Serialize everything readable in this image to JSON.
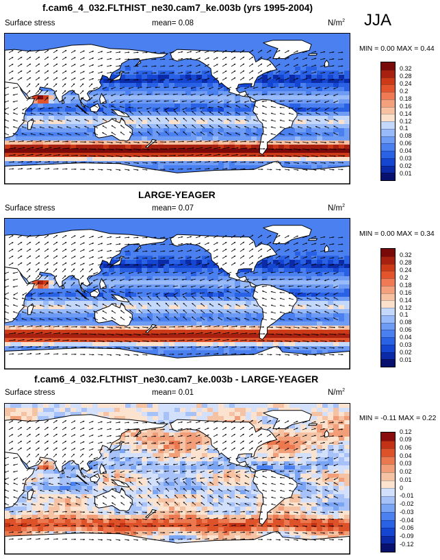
{
  "season": "JJA",
  "panels": [
    {
      "title": "f.cam6_4_032.FLTHIST_ne30.cam7_ke.003b (yrs 1995-2004)",
      "variable": "Surface stress",
      "mean_label": "mean=",
      "mean_value": "0.08",
      "units": "N/m",
      "units_sup": "2",
      "min_label": "MIN =",
      "min_value": "0.00",
      "max_label": "MAX =",
      "max_value": "0.44",
      "palette": "sequential"
    },
    {
      "title": "LARGE-YEAGER",
      "variable": "Surface stress",
      "mean_label": "mean=",
      "mean_value": "0.07",
      "units": "N/m",
      "units_sup": "2",
      "min_label": "MIN =",
      "min_value": "0.00",
      "max_label": "MAX =",
      "max_value": "0.34",
      "palette": "sequential"
    },
    {
      "title": "f.cam6_4_032.FLTHIST_ne30.cam7_ke.003b - LARGE-YEAGER",
      "variable": "Surface stress",
      "mean_label": "mean=",
      "mean_value": "0.01",
      "units": "N/m",
      "units_sup": "2",
      "min_label": "MIN =",
      "min_value": "-0.11",
      "max_label": "MAX =",
      "max_value": "0.22",
      "palette": "diverging"
    }
  ],
  "colors": {
    "sequential": [
      "#08126e",
      "#0a2aa8",
      "#1446d2",
      "#2a62e6",
      "#4a80f0",
      "#6e9cf4",
      "#98baf8",
      "#c4d8fb",
      "#fbe1cc",
      "#f8c2a2",
      "#f5a07c",
      "#ef7a54",
      "#e3542c",
      "#cc3a18",
      "#a82010",
      "#7a0a0a"
    ],
    "diverging": [
      "#08126e",
      "#0a2aa8",
      "#1446d2",
      "#2a62e6",
      "#4a80f0",
      "#7aa4f4",
      "#a6c2f8",
      "#d2e0fb",
      "#fbe3d0",
      "#f6c2a4",
      "#f29e78",
      "#ec7850",
      "#de522a",
      "#c43216",
      "#8a0c0c"
    ],
    "land": "#ffffff"
  },
  "chart_data": [
    {
      "type": "heatmap",
      "title": "f.cam6_4_032.FLTHIST_ne30.cam7_ke.003b (yrs 1995-2004)",
      "variable": "Surface stress",
      "units": "N/m2",
      "season": "JJA",
      "mean": 0.08,
      "min": 0.0,
      "max": 0.44,
      "colorbar_levels": [
        0.01,
        0.02,
        0.03,
        0.04,
        0.06,
        0.08,
        0.1,
        0.12,
        0.14,
        0.16,
        0.18,
        0.2,
        0.24,
        0.28,
        0.32
      ],
      "colorbar_labels": [
        "0.01",
        "0.02",
        "0.03",
        "0.04",
        "0.06",
        "0.08",
        "0.1",
        "0.12",
        "0.14",
        "0.16",
        "0.18",
        "0.2",
        "0.24",
        "0.28",
        "0.32"
      ]
    },
    {
      "type": "heatmap",
      "title": "LARGE-YEAGER",
      "variable": "Surface stress",
      "units": "N/m2",
      "mean": 0.07,
      "min": 0.0,
      "max": 0.34,
      "colorbar_levels": [
        0.01,
        0.02,
        0.03,
        0.04,
        0.06,
        0.08,
        0.1,
        0.12,
        0.14,
        0.16,
        0.18,
        0.2,
        0.24,
        0.28,
        0.32
      ],
      "colorbar_labels": [
        "0.01",
        "0.02",
        "0.03",
        "0.04",
        "0.06",
        "0.08",
        "0.1",
        "0.12",
        "0.14",
        "0.16",
        "0.18",
        "0.2",
        "0.24",
        "0.28",
        "0.32"
      ]
    },
    {
      "type": "heatmap",
      "title": "f.cam6_4_032.FLTHIST_ne30.cam7_ke.003b - LARGE-YEAGER",
      "variable": "Surface stress",
      "units": "N/m2",
      "mean": 0.01,
      "min": -0.11,
      "max": 0.22,
      "colorbar_levels": [
        -0.12,
        -0.09,
        -0.06,
        -0.04,
        -0.03,
        -0.02,
        -0.01,
        0,
        0.01,
        0.02,
        0.03,
        0.04,
        0.06,
        0.09,
        0.12
      ],
      "colorbar_labels": [
        "-0.12",
        "-0.09",
        "-0.06",
        "-0.04",
        "-0.03",
        "-0.02",
        "-0.01",
        "0",
        "0.01",
        "0.02",
        "0.03",
        "0.04",
        "0.06",
        "0.09",
        "0.12"
      ]
    }
  ]
}
